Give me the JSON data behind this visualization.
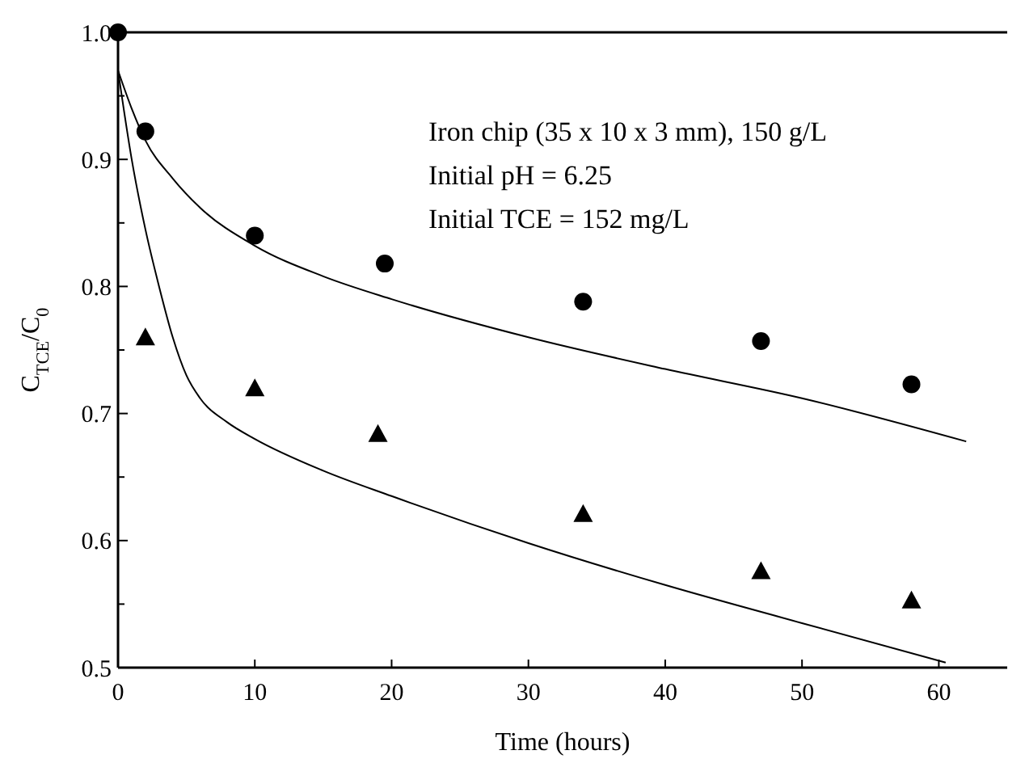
{
  "chart_data": {
    "type": "scatter",
    "xlabel": "Time (hours)",
    "ylabel": "C$_{TCE}$/C$_{0}$",
    "xlim": [
      0,
      65
    ],
    "xticks": [
      0,
      10,
      20,
      30,
      40,
      50,
      60
    ],
    "ylim": [
      0.5,
      1.0
    ],
    "yticks": [
      {
        "value": 0.5,
        "label": "0.5"
      },
      {
        "value": 0.55,
        "label": null
      },
      {
        "value": 0.6,
        "label": "0.6"
      },
      {
        "value": 0.65,
        "label": null
      },
      {
        "value": 0.7,
        "label": "0.7"
      },
      {
        "value": 0.75,
        "label": null
      },
      {
        "value": 0.8,
        "label": "0.8"
      },
      {
        "value": 0.85,
        "label": null
      },
      {
        "value": 0.9,
        "label": "0.9"
      },
      {
        "value": 0.95,
        "label": null
      },
      {
        "value": 1.0,
        "label": "1.0"
      }
    ],
    "grid": false,
    "annotations": [
      "Iron chip (35 x 10 x 3 mm), 150 g/L",
      "Initial pH = 6.25",
      "Initial TCE = 152 mg/L"
    ],
    "series": [
      {
        "marker": "circle",
        "color": "#000000",
        "x": [
          0,
          2,
          10,
          19.5,
          34,
          47,
          58
        ],
        "values": [
          1.0,
          0.922,
          0.84,
          0.818,
          0.788,
          0.757,
          0.723
        ]
      },
      {
        "marker": "triangle",
        "color": "#000000",
        "x": [
          2,
          10,
          19,
          34,
          47,
          58
        ],
        "values": [
          0.76,
          0.72,
          0.684,
          0.621,
          0.576,
          0.553
        ]
      },
      {
        "type": "line",
        "marker": "none",
        "line_style": "solid",
        "color": "#000000",
        "x": [
          0,
          1,
          2,
          4,
          6,
          10,
          15,
          20,
          30,
          40,
          50,
          62
        ],
        "values": [
          0.97,
          0.94,
          0.915,
          0.885,
          0.862,
          0.832,
          0.808,
          0.79,
          0.76,
          0.735,
          0.712,
          0.678
        ]
      },
      {
        "type": "line",
        "marker": "none",
        "line_style": "solid",
        "color": "#000000",
        "x": [
          0,
          1,
          2,
          3,
          4,
          5,
          6,
          8,
          10,
          15,
          20,
          30,
          40,
          50,
          60.5
        ],
        "values": [
          0.97,
          0.9,
          0.845,
          0.8,
          0.76,
          0.73,
          0.712,
          0.693,
          0.68,
          0.655,
          0.635,
          0.598,
          0.565,
          0.535,
          0.504
        ]
      }
    ]
  }
}
